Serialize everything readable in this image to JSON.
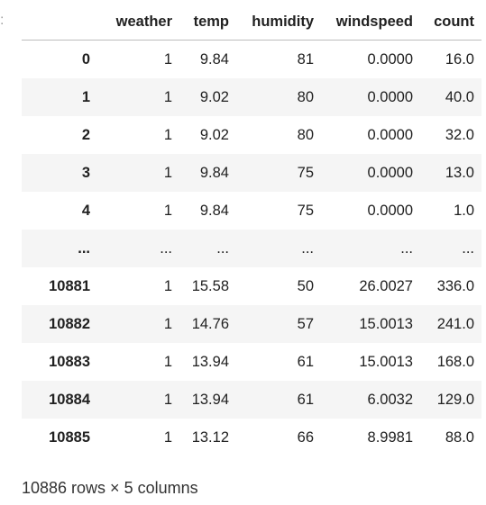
{
  "prompt_marker": ":",
  "table": {
    "columns": [
      "",
      "weather",
      "temp",
      "humidity",
      "windspeed",
      "count"
    ],
    "rows": [
      [
        "0",
        "1",
        "9.84",
        "81",
        "0.0000",
        "16.0"
      ],
      [
        "1",
        "1",
        "9.02",
        "80",
        "0.0000",
        "40.0"
      ],
      [
        "2",
        "1",
        "9.02",
        "80",
        "0.0000",
        "32.0"
      ],
      [
        "3",
        "1",
        "9.84",
        "75",
        "0.0000",
        "13.0"
      ],
      [
        "4",
        "1",
        "9.84",
        "75",
        "0.0000",
        "1.0"
      ],
      [
        "...",
        "...",
        "...",
        "...",
        "...",
        "..."
      ],
      [
        "10881",
        "1",
        "15.58",
        "50",
        "26.0027",
        "336.0"
      ],
      [
        "10882",
        "1",
        "14.76",
        "57",
        "15.0013",
        "241.0"
      ],
      [
        "10883",
        "1",
        "13.94",
        "61",
        "15.0013",
        "168.0"
      ],
      [
        "10884",
        "1",
        "13.94",
        "61",
        "6.0032",
        "129.0"
      ],
      [
        "10885",
        "1",
        "13.12",
        "66",
        "8.9981",
        "88.0"
      ]
    ]
  },
  "footer": "10886 rows × 5 columns"
}
